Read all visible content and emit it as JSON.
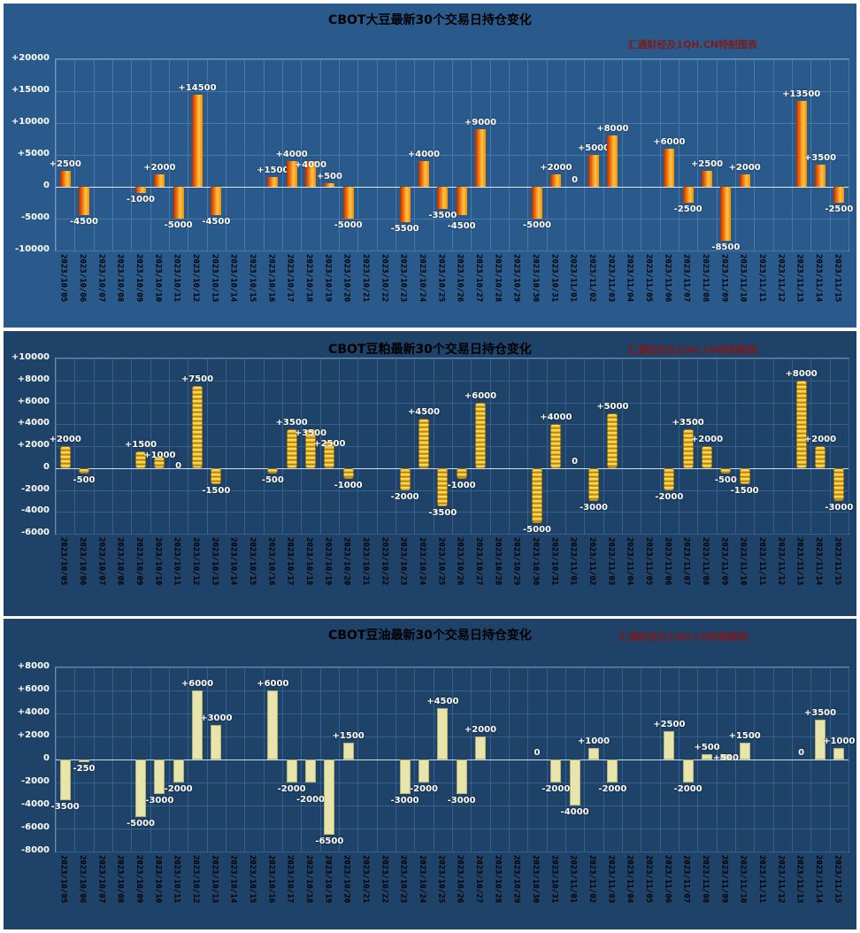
{
  "page": {
    "background": "#ffffff"
  },
  "chart_data": [
    {
      "type": "bar",
      "title": "CBOT大豆最新30个交易日持仓变化",
      "subtitle": "汇通财经及1QH.CN特制图表",
      "xlabel": "",
      "ylabel": "",
      "ylim": [
        -10000,
        20000
      ],
      "ytick_step": 5000,
      "yticks": [
        "+20000",
        "+15000",
        "+10000",
        "+5000",
        "0",
        "-5000",
        "-10000"
      ],
      "grid": true,
      "legend": "none",
      "categories": [
        "2023/10/05",
        "2023/10/06",
        "2023/10/07",
        "2023/10/08",
        "2023/10/09",
        "2023/10/10",
        "2023/10/11",
        "2023/10/12",
        "2023/10/13",
        "2023/10/14",
        "2023/10/15",
        "2023/10/16",
        "2023/10/17",
        "2023/10/18",
        "2023/10/19",
        "2023/10/20",
        "2023/10/21",
        "2023/10/22",
        "2023/10/23",
        "2023/10/24",
        "2023/10/25",
        "2023/10/26",
        "2023/10/27",
        "2023/10/28",
        "2023/10/29",
        "2023/10/30",
        "2023/10/31",
        "2023/11/01",
        "2023/11/02",
        "2023/11/03",
        "2023/11/04",
        "2023/11/05",
        "2023/11/06",
        "2023/11/07",
        "2023/11/08",
        "2023/11/09",
        "2023/11/10",
        "2023/11/11",
        "2023/11/12",
        "2023/11/13",
        "2023/11/14",
        "2023/11/15"
      ],
      "values": [
        2500,
        -4500,
        null,
        null,
        -1000,
        2000,
        -5000,
        14500,
        -4500,
        null,
        null,
        1500,
        4000,
        4000,
        500,
        -5000,
        null,
        null,
        -5500,
        4000,
        -3500,
        -4500,
        9000,
        null,
        null,
        -5000,
        2000,
        0,
        5000,
        8000,
        null,
        null,
        6000,
        -2500,
        2500,
        -8500,
        2000,
        null,
        null,
        13500,
        3500,
        -2500
      ],
      "style": {
        "bar_type": "cylinder",
        "bg": "#2a5a8c",
        "grid_color": "#4679ab",
        "zero_line": "#dce9f5",
        "bar_colors": [
          "#b23000",
          "#e85d04",
          "#ffc445",
          "#f08c00"
        ],
        "label_color": "#ffffff",
        "axis_label_color": "#ffffff",
        "date_color": "#000000",
        "title_color": "#000000",
        "subtitle_color": "#7b1c1c"
      }
    },
    {
      "type": "bar",
      "title": "CBOT豆粕最新30个交易日持仓变化",
      "subtitle": "汇通财经及1QH.CN特制图表",
      "xlabel": "",
      "ylabel": "",
      "ylim": [
        -6000,
        10000
      ],
      "ytick_step": 2000,
      "yticks": [
        "+10000",
        "+8000",
        "+6000",
        "+4000",
        "+2000",
        "0",
        "-2000",
        "-4000",
        "-6000"
      ],
      "grid": true,
      "legend": "none",
      "categories": [
        "2023/10/05",
        "2023/10/06",
        "2023/10/07",
        "2023/10/08",
        "2023/10/09",
        "2023/10/10",
        "2023/10/11",
        "2023/10/12",
        "2023/10/13",
        "2023/10/14",
        "2023/10/15",
        "2023/10/16",
        "2023/10/17",
        "2023/10/18",
        "2023/10/19",
        "2023/10/20",
        "2023/10/21",
        "2023/10/22",
        "2023/10/23",
        "2023/10/24",
        "2023/10/25",
        "2023/10/26",
        "2023/10/27",
        "2023/10/28",
        "2023/10/29",
        "2023/10/30",
        "2023/10/31",
        "2023/11/01",
        "2023/11/02",
        "2023/11/03",
        "2023/11/04",
        "2023/11/05",
        "2023/11/06",
        "2023/11/07",
        "2023/11/08",
        "2023/11/09",
        "2023/11/10",
        "2023/11/11",
        "2023/11/12",
        "2023/11/13",
        "2023/11/14",
        "2023/11/15"
      ],
      "values": [
        2000,
        -500,
        null,
        null,
        1500,
        1000,
        0,
        7500,
        -1500,
        null,
        null,
        -500,
        3500,
        3500,
        2500,
        -1000,
        null,
        null,
        -2000,
        4500,
        -3500,
        -1000,
        6000,
        null,
        null,
        -5000,
        4000,
        0,
        -3000,
        5000,
        null,
        null,
        -2000,
        3500,
        2000,
        -500,
        -1500,
        null,
        null,
        8000,
        2000,
        -3000
      ],
      "style": {
        "bar_type": "coins",
        "bg": "#1e4268",
        "grid_color": "#35608e",
        "zero_line": "#cfdeed",
        "bar_colors": [
          "#ffe27a",
          "#ffc93a",
          "#9a7200"
        ],
        "label_color": "#ffffff",
        "axis_label_color": "#ffffff",
        "date_color": "#000000",
        "title_color": "#000000",
        "subtitle_color": "#7b1c1c"
      }
    },
    {
      "type": "bar",
      "title": "CBOT豆油最新30个交易日持仓变化",
      "subtitle": "汇通财经及1QH.CN特制图表",
      "xlabel": "",
      "ylabel": "",
      "ylim": [
        -8000,
        8000
      ],
      "ytick_step": 2000,
      "yticks": [
        "+8000",
        "+6000",
        "+4000",
        "+2000",
        "0",
        "-2000",
        "-4000",
        "-6000",
        "-8000"
      ],
      "grid": true,
      "legend": "none",
      "categories": [
        "2023/10/05",
        "2023/10/06",
        "2023/10/07",
        "2023/10/08",
        "2023/10/09",
        "2023/10/10",
        "2023/10/11",
        "2023/10/12",
        "2023/10/13",
        "2023/10/14",
        "2023/10/15",
        "2023/10/16",
        "2023/10/17",
        "2023/10/18",
        "2023/10/19",
        "2023/10/20",
        "2023/10/21",
        "2023/10/22",
        "2023/10/23",
        "2023/10/24",
        "2023/10/25",
        "2023/10/26",
        "2023/10/27",
        "2023/10/28",
        "2023/10/29",
        "2023/10/30",
        "2023/10/31",
        "2023/11/01",
        "2023/11/02",
        "2023/11/03",
        "2023/11/04",
        "2023/11/05",
        "2023/11/06",
        "2023/11/07",
        "2023/11/08",
        "2023/11/09",
        "2023/11/10",
        "2023/11/11",
        "2023/11/12",
        "2023/11/13",
        "2023/11/14",
        "2023/11/15"
      ],
      "values": [
        -3500,
        -250,
        null,
        null,
        -5000,
        -3000,
        -2000,
        6000,
        3000,
        null,
        null,
        6000,
        -2000,
        -2000,
        -6500,
        1500,
        null,
        null,
        -3000,
        -2000,
        4500,
        -3000,
        2000,
        null,
        null,
        0,
        -2000,
        -4000,
        1000,
        -2000,
        null,
        null,
        2500,
        -2000,
        500,
        500,
        1500,
        null,
        null,
        0,
        3500,
        1000
      ],
      "style": {
        "bar_type": "flat",
        "bg": "#1e4268",
        "grid_color": "#35608e",
        "zero_line": "#cfdeed",
        "bar_colors": [
          "#e8e5ab",
          "#b5b275"
        ],
        "label_color": "#ffffff",
        "axis_label_color": "#ffffff",
        "date_color": "#000000",
        "title_color": "#000000",
        "subtitle_color": "#7b1c1c"
      }
    }
  ]
}
